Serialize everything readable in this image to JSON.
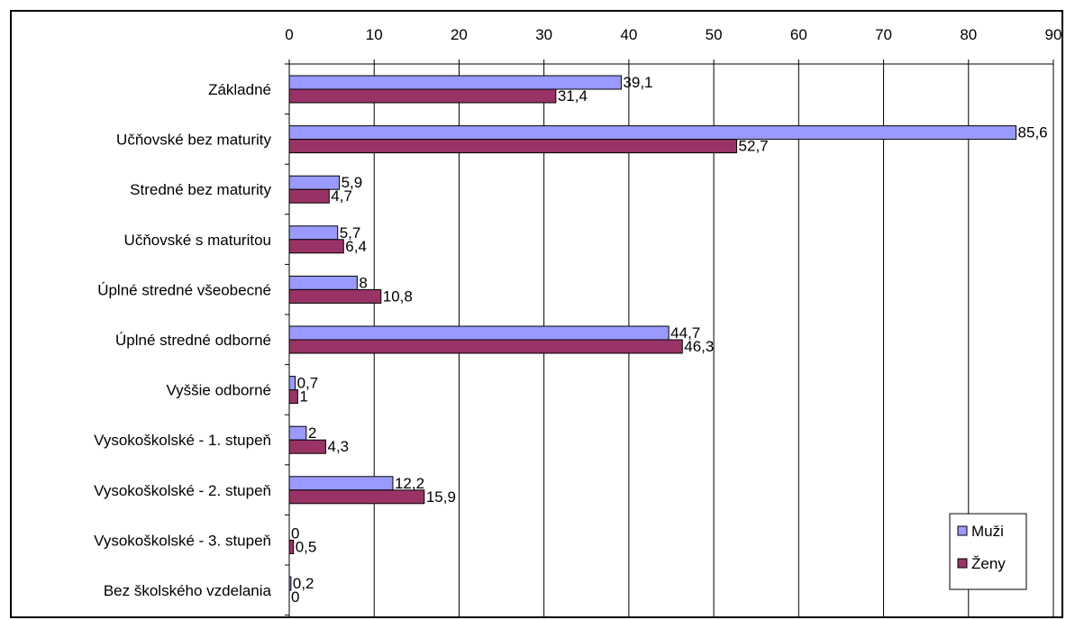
{
  "chart_data": {
    "type": "bar",
    "orientation": "horizontal",
    "categories": [
      "Základné",
      "Učňovské bez maturity",
      "Stredné bez maturity",
      "Učňovské s maturitou",
      "Úplné stredné všeobecné",
      "Úplné stredné odborné",
      "Vyššie odborné",
      "Vysokoškolské - 1. stupeň",
      "Vysokoškolské - 2. stupeň",
      "Vysokoškolské - 3. stupeň",
      "Bez školského vzdelania"
    ],
    "series": [
      {
        "name": "Muži",
        "color": "#9999ff",
        "values": [
          39.1,
          85.6,
          5.9,
          5.7,
          8,
          44.7,
          0.7,
          2,
          12.2,
          0,
          0.2
        ],
        "labels": [
          "39,1",
          "85,6",
          "5,9",
          "5,7",
          "8",
          "44,7",
          "0,7",
          "2",
          "12,2",
          "0",
          "0,2"
        ]
      },
      {
        "name": "Ženy",
        "color": "#993366",
        "values": [
          31.4,
          52.7,
          4.7,
          6.4,
          10.8,
          46.3,
          1,
          4.3,
          15.9,
          0.5,
          0
        ],
        "labels": [
          "31,4",
          "52,7",
          "4,7",
          "6,4",
          "10,8",
          "46,3",
          "1",
          "4,3",
          "15,9",
          "0,5",
          "0"
        ]
      }
    ],
    "xlim": [
      0,
      90
    ],
    "ticks": [
      "0",
      "10",
      "20",
      "30",
      "40",
      "50",
      "60",
      "70",
      "80",
      "90"
    ],
    "grid": true,
    "x_axis_position": "top",
    "legend_position": "bottom-right",
    "title": "",
    "xlabel": "",
    "ylabel": ""
  }
}
